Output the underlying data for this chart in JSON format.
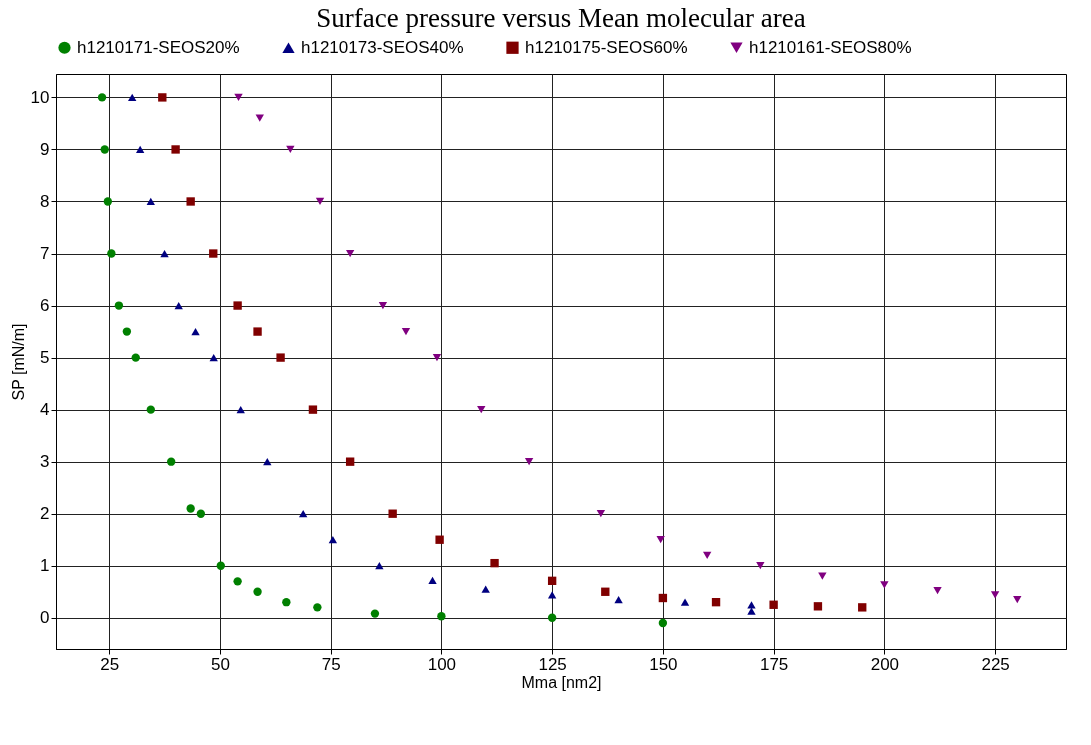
{
  "chart_data": {
    "type": "scatter",
    "title": "Surface pressure versus Mean molecular area",
    "xlabel": "Mma [nm2]",
    "ylabel": "SP [mN/m]",
    "xlim": [
      13,
      241
    ],
    "ylim": [
      -0.6,
      10.45
    ],
    "xticks": [
      25,
      50,
      75,
      100,
      125,
      150,
      175,
      200,
      225
    ],
    "yticks": [
      0,
      1,
      2,
      3,
      4,
      5,
      6,
      7,
      8,
      9,
      10
    ],
    "grid": true,
    "legend": "top",
    "series": [
      {
        "name": "h1210171-SEOS20%",
        "color": "#008000",
        "marker": "circle",
        "x": [
          23.4,
          24,
          24.7,
          25.5,
          27.2,
          29,
          31,
          34.4,
          39,
          43.4,
          45.7,
          50.2,
          54,
          58.5,
          65,
          72,
          85,
          100,
          125,
          150
        ],
        "values": [
          10,
          9,
          8,
          7,
          6,
          5.5,
          5,
          4,
          3,
          2.1,
          2,
          1,
          0.7,
          0.5,
          0.3,
          0.2,
          0.08,
          0.03,
          0,
          -0.1
        ]
      },
      {
        "name": "h1210173-SEOS40%",
        "color": "#000080",
        "marker": "triangle",
        "x": [
          30.2,
          32,
          34.4,
          37.5,
          40.7,
          44.5,
          48.6,
          54.7,
          60.7,
          68.8,
          75.5,
          86,
          98,
          110,
          125,
          140,
          155,
          170,
          170
        ],
        "values": [
          10,
          9,
          8,
          7,
          6,
          5.5,
          5,
          4,
          3,
          2,
          1.5,
          1,
          0.72,
          0.55,
          0.44,
          0.35,
          0.3,
          0.25,
          0.13
        ]
      },
      {
        "name": "h1210175-SEOS60%",
        "color": "#800000",
        "marker": "square",
        "x": [
          37,
          40,
          43.4,
          48.5,
          54,
          58.5,
          63.7,
          71,
          79.4,
          89,
          99.6,
          112,
          125,
          137,
          150,
          162,
          175,
          185,
          195
        ],
        "values": [
          10,
          9,
          8,
          7,
          6,
          5.5,
          5,
          4,
          3,
          2,
          1.5,
          1.05,
          0.71,
          0.5,
          0.38,
          0.3,
          0.25,
          0.22,
          0.2
        ]
      },
      {
        "name": "h1210161-SEOS80%",
        "color": "#800080",
        "marker": "triangle-down",
        "x": [
          54.2,
          59,
          65.9,
          72.6,
          79.4,
          86.8,
          92,
          99,
          109,
          119.8,
          136,
          149.5,
          160,
          172,
          186,
          200,
          212,
          225,
          230
        ],
        "values": [
          10,
          9.6,
          9,
          8,
          7,
          6,
          5.5,
          5,
          4,
          3,
          2,
          1.5,
          1.2,
          1,
          0.8,
          0.63,
          0.52,
          0.44,
          0.35
        ]
      }
    ]
  }
}
